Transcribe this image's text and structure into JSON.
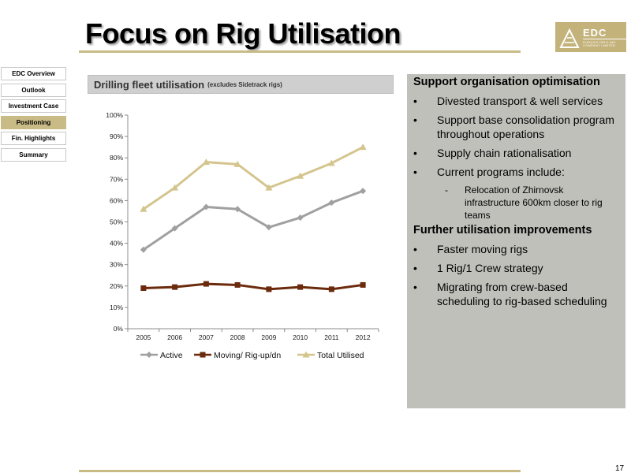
{
  "slide": {
    "title": "Focus on Rig Utilisation",
    "page_number": "17"
  },
  "logo": {
    "name": "EDC",
    "tagline": "EURASIA DRILLING COMPANY LIMITED"
  },
  "nav": {
    "items": [
      {
        "label": "EDC Overview",
        "active": false
      },
      {
        "label": "Outlook",
        "active": false
      },
      {
        "label": "Investment Case",
        "active": false
      },
      {
        "label": "Positioning",
        "active": true
      },
      {
        "label": "Fin. Highlights",
        "active": false
      },
      {
        "label": "Summary",
        "active": false
      }
    ]
  },
  "chart_header": {
    "title": "Drilling fleet utilisation",
    "note": "(excludes Sidetrack rigs)"
  },
  "chart_data": {
    "type": "line",
    "title": "",
    "xlabel": "",
    "ylabel": "",
    "x": [
      "2005",
      "2006",
      "2007",
      "2008",
      "2009",
      "2010",
      "2011",
      "2012"
    ],
    "y_ticks": [
      "0%",
      "10%",
      "20%",
      "30%",
      "40%",
      "50%",
      "60%",
      "70%",
      "80%",
      "90%",
      "100%"
    ],
    "ylim": [
      0,
      100
    ],
    "grid": false,
    "legend_position": "bottom",
    "series": [
      {
        "name": "Active",
        "color": "#a0a0a0",
        "marker": "diamond",
        "values": [
          37,
          47,
          57,
          56,
          47.5,
          52,
          59,
          64.5
        ]
      },
      {
        "name": "Moving/ Rig-up/dn",
        "color": "#6b2a0c",
        "marker": "square",
        "values": [
          19,
          19.5,
          21,
          20.5,
          18.5,
          19.5,
          18.5,
          20.5
        ]
      },
      {
        "name": "Total Utilised",
        "color": "#d4c58e",
        "marker": "triangle",
        "values": [
          56,
          66,
          78,
          77,
          66,
          71.5,
          77.5,
          85
        ]
      }
    ]
  },
  "panel": {
    "section1": {
      "title": "Support organisation optimisation",
      "bullets": [
        "Divested transport & well services",
        "Support base consolidation program throughout operations",
        "Supply chain rationalisation",
        "Current programs include:"
      ],
      "sub_bullets": [
        "Relocation of Zhirnovsk infrastructure 600km closer to rig teams"
      ]
    },
    "section2": {
      "title": "Further utilisation improvements",
      "bullets": [
        "Faster moving rigs",
        "1 Rig/1 Crew strategy",
        "Migrating from crew-based scheduling to rig-based scheduling"
      ]
    }
  }
}
